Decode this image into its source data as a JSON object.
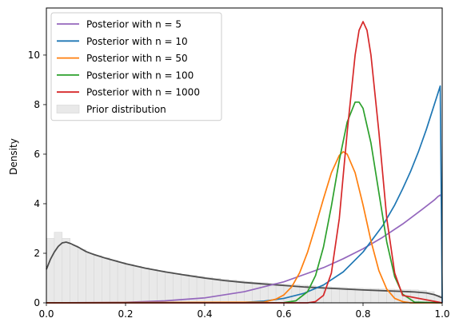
{
  "chart_data": {
    "type": "line",
    "title": "",
    "xlabel": "",
    "ylabel": "Density",
    "xlim": [
      0,
      1
    ],
    "ylim": [
      0,
      11.9
    ],
    "x_ticks": [
      "0.0",
      "0.2",
      "0.4",
      "0.6",
      "0.8",
      "1.0"
    ],
    "y_ticks": [
      "0",
      "2",
      "4",
      "6",
      "8",
      "10"
    ],
    "legend_location": "upper left",
    "prior": {
      "name": "Prior distribution",
      "bar_color": "#e9e9e9",
      "bar_edge_color": "#d3d3d3",
      "curve_color": "#4d4d4d",
      "bin_width": 0.02,
      "hist_values": [
        2.6,
        2.85,
        2.6,
        2.3,
        2.15,
        2.0,
        1.9,
        1.82,
        1.72,
        1.63,
        1.55,
        1.48,
        1.41,
        1.35,
        1.29,
        1.24,
        1.19,
        1.15,
        1.11,
        1.07,
        1.03,
        0.99,
        0.95,
        0.92,
        0.89,
        0.86,
        0.83,
        0.81,
        0.79,
        0.77,
        0.75,
        0.73,
        0.71,
        0.69,
        0.67,
        0.65,
        0.63,
        0.62,
        0.6,
        0.59,
        0.58,
        0.57,
        0.56,
        0.55,
        0.54,
        0.53,
        0.52,
        0.5,
        0.45,
        0.3
      ],
      "curve_x": [
        0.0,
        0.01,
        0.02,
        0.03,
        0.04,
        0.05,
        0.06,
        0.08,
        0.1,
        0.12,
        0.15,
        0.2,
        0.25,
        0.3,
        0.35,
        0.4,
        0.45,
        0.5,
        0.55,
        0.6,
        0.65,
        0.7,
        0.75,
        0.8,
        0.85,
        0.9,
        0.93,
        0.96,
        0.98,
        0.99,
        1.0
      ],
      "curve_y": [
        1.35,
        1.75,
        2.05,
        2.28,
        2.42,
        2.45,
        2.4,
        2.25,
        2.07,
        1.95,
        1.8,
        1.58,
        1.4,
        1.25,
        1.12,
        1.0,
        0.9,
        0.82,
        0.76,
        0.7,
        0.64,
        0.6,
        0.56,
        0.52,
        0.49,
        0.46,
        0.44,
        0.4,
        0.33,
        0.27,
        0.2
      ]
    },
    "series": [
      {
        "name": "Posterior with n = 5",
        "color": "#9467bd",
        "x": [
          0.0,
          0.2,
          0.3,
          0.4,
          0.5,
          0.6,
          0.7,
          0.75,
          0.8,
          0.85,
          0.9,
          0.95,
          0.98,
          0.99,
          0.995,
          1.0
        ],
        "y": [
          0.0,
          0.02,
          0.08,
          0.2,
          0.45,
          0.85,
          1.42,
          1.78,
          2.18,
          2.65,
          3.18,
          3.78,
          4.15,
          4.3,
          4.35,
          4.25
        ]
      },
      {
        "name": "Posterior with n = 10",
        "color": "#1f77b4",
        "x": [
          0.0,
          0.5,
          0.55,
          0.6,
          0.65,
          0.7,
          0.75,
          0.8,
          0.85,
          0.88,
          0.9,
          0.92,
          0.94,
          0.96,
          0.98,
          0.99,
          0.995,
          1.0
        ],
        "y": [
          0.0,
          0.02,
          0.07,
          0.18,
          0.38,
          0.72,
          1.25,
          2.05,
          3.12,
          3.95,
          4.6,
          5.3,
          6.1,
          7.0,
          8.0,
          8.5,
          8.75,
          0.0
        ]
      },
      {
        "name": "Posterior with n = 50",
        "color": "#ff7f0e",
        "x": [
          0.0,
          0.55,
          0.58,
          0.6,
          0.62,
          0.64,
          0.66,
          0.68,
          0.7,
          0.72,
          0.74,
          0.75,
          0.76,
          0.78,
          0.8,
          0.82,
          0.84,
          0.86,
          0.88,
          0.9,
          0.92,
          1.0
        ],
        "y": [
          0.0,
          0.03,
          0.15,
          0.32,
          0.65,
          1.22,
          2.05,
          3.1,
          4.2,
          5.25,
          5.95,
          6.1,
          6.0,
          5.25,
          3.95,
          2.5,
          1.3,
          0.55,
          0.18,
          0.05,
          0.0,
          0.0
        ]
      },
      {
        "name": "Posterior with n = 100",
        "color": "#2ca02c",
        "x": [
          0.0,
          0.6,
          0.63,
          0.66,
          0.68,
          0.7,
          0.72,
          0.74,
          0.76,
          0.78,
          0.79,
          0.8,
          0.82,
          0.84,
          0.86,
          0.88,
          0.9,
          0.93,
          1.0
        ],
        "y": [
          0.0,
          0.01,
          0.08,
          0.45,
          1.1,
          2.25,
          3.9,
          5.75,
          7.3,
          8.1,
          8.1,
          7.85,
          6.45,
          4.45,
          2.45,
          1.05,
          0.35,
          0.03,
          0.0
        ]
      },
      {
        "name": "Posterior with n = 1000",
        "color": "#d62728",
        "x": [
          0.0,
          0.66,
          0.68,
          0.7,
          0.72,
          0.74,
          0.76,
          0.78,
          0.79,
          0.8,
          0.81,
          0.82,
          0.84,
          0.86,
          0.88,
          0.9,
          1.0
        ],
        "y": [
          0.0,
          0.0,
          0.05,
          0.3,
          1.2,
          3.4,
          6.9,
          10.0,
          11.0,
          11.35,
          11.0,
          10.0,
          6.9,
          3.4,
          1.2,
          0.3,
          0.0
        ]
      }
    ]
  }
}
